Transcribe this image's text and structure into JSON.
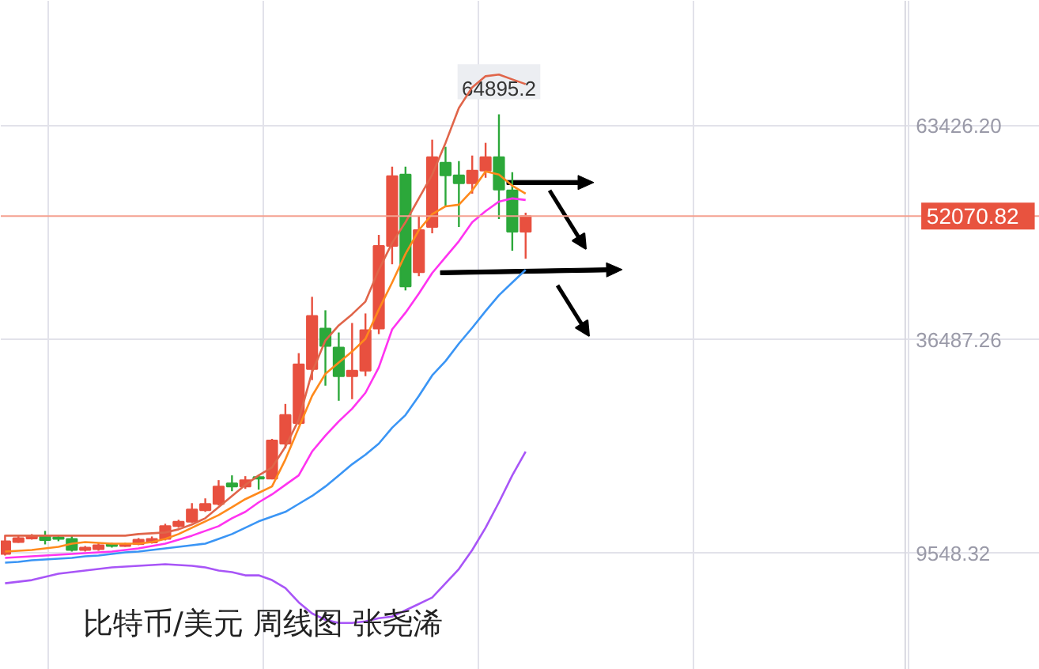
{
  "chart_data": {
    "type": "candlestick",
    "title": "比特币/美元 周线图 张尧浠",
    "categories": [
      null,
      null,
      null,
      null,
      null,
      null,
      null,
      null,
      null,
      null,
      null,
      null,
      null,
      null,
      null,
      null,
      null,
      null,
      null,
      null,
      null,
      null,
      null,
      null,
      null,
      null,
      null,
      null,
      null,
      null,
      null,
      null,
      null,
      null,
      null,
      null,
      null,
      null,
      null,
      null
    ],
    "ohlc": [
      [
        9500,
        11900,
        9300,
        11100
      ],
      [
        11000,
        11900,
        10900,
        11500
      ],
      [
        11450,
        12000,
        11300,
        11750
      ],
      [
        11700,
        12400,
        10700,
        11250
      ],
      [
        11600,
        11900,
        11100,
        11400
      ],
      [
        11400,
        11900,
        9800,
        10000
      ],
      [
        10000,
        10500,
        9800,
        10300
      ],
      [
        10100,
        10900,
        9900,
        10600
      ],
      [
        10700,
        10900,
        10300,
        10500
      ],
      [
        10500,
        10900,
        10400,
        10700
      ],
      [
        10750,
        11500,
        10600,
        11300
      ],
      [
        10950,
        11700,
        10800,
        11400
      ],
      [
        11400,
        13300,
        11200,
        13000
      ],
      [
        13000,
        13800,
        12800,
        13550
      ],
      [
        13550,
        15900,
        13400,
        15100
      ],
      [
        15000,
        16500,
        14800,
        15800
      ],
      [
        15800,
        18800,
        15600,
        18000
      ],
      [
        18400,
        19400,
        17400,
        18000
      ],
      [
        18000,
        19300,
        17700,
        18800
      ],
      [
        19200,
        19400,
        17600,
        19000
      ],
      [
        19000,
        24000,
        18900,
        23800
      ],
      [
        23400,
        28400,
        22800,
        27000
      ],
      [
        26000,
        34800,
        25800,
        33400
      ],
      [
        32800,
        41900,
        31400,
        39500
      ],
      [
        37900,
        40200,
        30700,
        35700
      ],
      [
        35500,
        37400,
        28800,
        31900
      ],
      [
        31900,
        38600,
        29000,
        32600
      ],
      [
        32600,
        39800,
        31900,
        37700
      ],
      [
        37900,
        49700,
        37200,
        48300
      ],
      [
        48300,
        58300,
        46000,
        57100
      ],
      [
        57300,
        58300,
        42700,
        43200
      ],
      [
        45000,
        52000,
        44500,
        50300
      ],
      [
        50700,
        61700,
        49900,
        59500
      ],
      [
        58800,
        60800,
        53300,
        57200
      ],
      [
        57200,
        59000,
        50700,
        56200
      ],
      [
        56200,
        59700,
        54900,
        57800
      ],
      [
        57800,
        61300,
        56900,
        59500
      ],
      [
        59500,
        64895.2,
        51700,
        55400
      ],
      [
        55300,
        57600,
        47700,
        50100
      ],
      [
        50100,
        52500,
        46700,
        52070.82
      ]
    ],
    "colors": [
      "#e8503f",
      "#e8503f",
      "#e8503f",
      "#2ca83a",
      "#2ca83a",
      "#2ca83a",
      "#e8503f",
      "#e8503f",
      "#2ca83a",
      "#e8503f",
      "#e8503f",
      "#e8503f",
      "#e8503f",
      "#e8503f",
      "#e8503f",
      "#e8503f",
      "#e8503f",
      "#2ca83a",
      "#e8503f",
      "#2ca83a",
      "#e8503f",
      "#e8503f",
      "#e8503f",
      "#e8503f",
      "#2ca83a",
      "#2ca83a",
      "#e8503f",
      "#e8503f",
      "#e8503f",
      "#e8503f",
      "#2ca83a",
      "#e8503f",
      "#e8503f",
      "#2ca83a",
      "#2ca83a",
      "#e8503f",
      "#e8503f",
      "#2ca83a",
      "#2ca83a",
      "#e8503f"
    ],
    "series": [
      {
        "type": "line",
        "color": "#e0654a",
        "values": [
          11800,
          11800,
          11800,
          11800,
          11800,
          11800,
          11800,
          11800,
          11800,
          11800,
          12000,
          12100,
          12200,
          12600,
          13200,
          14000,
          15400,
          16800,
          18200,
          19400,
          20400,
          23000,
          26400,
          32400,
          36400,
          38300,
          39700,
          41300,
          45300,
          48700,
          51300,
          54300,
          57300,
          61300,
          65700,
          68300,
          69700,
          69900,
          69300,
          68700
        ]
      },
      {
        "type": "line",
        "color": "#ff8a1c",
        "values": [
          9800,
          9900,
          10000,
          10200,
          10400,
          10800,
          11000,
          10900,
          10800,
          10800,
          10800,
          11000,
          11400,
          12000,
          12800,
          13600,
          14400,
          15400,
          16400,
          17200,
          18000,
          21400,
          25400,
          29400,
          32200,
          33600,
          35000,
          36600,
          40300,
          43700,
          47300,
          50300,
          52300,
          53300,
          53500,
          55300,
          57700,
          57300,
          55900,
          54900
        ]
      },
      {
        "type": "line",
        "color": "#ff33f0",
        "values": [
          9000,
          9100,
          9200,
          9300,
          9400,
          9500,
          9600,
          9700,
          9800,
          10000,
          10200,
          10500,
          10800,
          11300,
          11800,
          12400,
          13000,
          14000,
          14800,
          16000,
          17000,
          18200,
          19400,
          22400,
          24400,
          26200,
          27800,
          29800,
          33000,
          37800,
          39900,
          42300,
          44900,
          46900,
          48900,
          51300,
          52700,
          53900,
          54300,
          54100
        ]
      },
      {
        "type": "line",
        "color": "#3a95f5",
        "values": [
          8400,
          8500,
          8700,
          8800,
          8900,
          9000,
          9200,
          9300,
          9500,
          9700,
          9800,
          10000,
          10200,
          10400,
          10600,
          10800,
          11400,
          12000,
          12800,
          13600,
          14200,
          14800,
          15800,
          16800,
          18000,
          19400,
          20800,
          22000,
          23400,
          25400,
          27000,
          29400,
          32000,
          33800,
          36000,
          38000,
          40100,
          42100,
          43700,
          45300
        ]
      },
      {
        "type": "line",
        "color": "#a855f7",
        "values": [
          5800,
          6000,
          6200,
          6600,
          7000,
          7200,
          7400,
          7600,
          7800,
          7900,
          8000,
          8100,
          8200,
          8100,
          8000,
          7800,
          7400,
          7200,
          6800,
          6800,
          6200,
          5200,
          3400,
          2000,
          1200,
          800,
          800,
          1000,
          1400,
          1600,
          2400,
          3200,
          4000,
          5800,
          7600,
          10000,
          12800,
          16000,
          19400,
          22400
        ]
      }
    ],
    "ylim": [
      -5100,
      79200
    ],
    "yticks": [
      {
        "value": 63426.2,
        "label": "63426.20"
      },
      {
        "value": 36487.26,
        "label": "36487.26"
      },
      {
        "value": 9548.32,
        "label": "9548.32"
      }
    ],
    "ref_lines": [
      {
        "axis": "y",
        "value": 52070.82,
        "label": "52070.82",
        "color": "#f4a08f"
      }
    ],
    "annotations": [
      {
        "text": "64895.2",
        "y": 64895.2
      }
    ],
    "grid": true,
    "line_style": "solid"
  }
}
